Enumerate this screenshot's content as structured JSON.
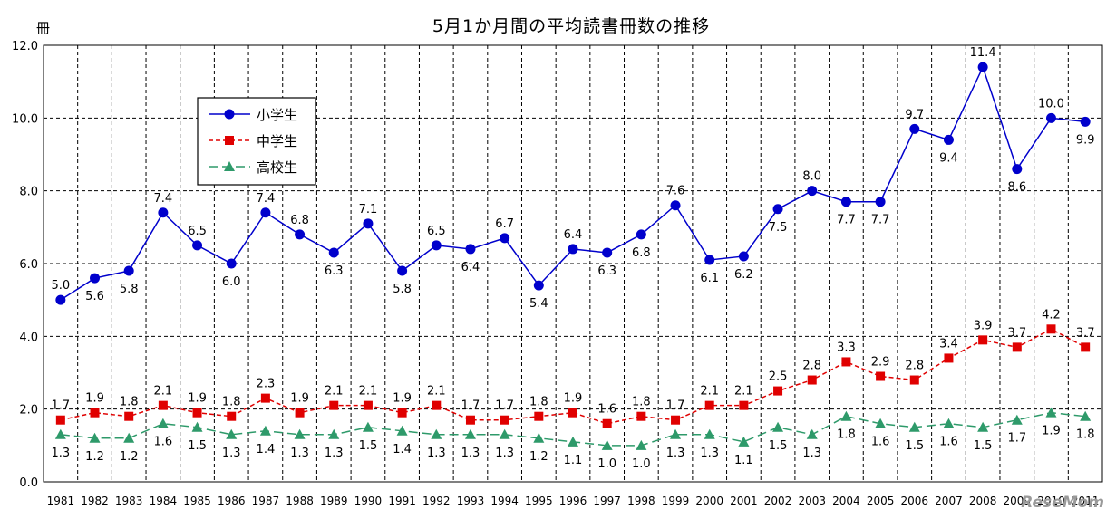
{
  "chart_data": {
    "type": "line",
    "title": "5月1か月間の平均読書冊数の推移",
    "ylabel": "冊",
    "xlabel": "",
    "ylim": [
      0,
      12
    ],
    "yticks": [
      "0.0",
      "2.0",
      "4.0",
      "6.0",
      "8.0",
      "10.0",
      "12.0"
    ],
    "grid": true,
    "legend": "top-left",
    "x": [
      1981,
      1982,
      1983,
      1984,
      1985,
      1986,
      1987,
      1988,
      1989,
      1990,
      1991,
      1992,
      1993,
      1994,
      1995,
      1996,
      1997,
      1998,
      1999,
      2000,
      2001,
      2002,
      2003,
      2004,
      2005,
      2006,
      2007,
      2008,
      2009,
      2010,
      2011
    ],
    "x_labels": [
      "1981",
      "1982",
      "1983",
      "1984",
      "1985",
      "1986",
      "1987",
      "1988",
      "1989",
      "1990",
      "1991",
      "1992",
      "1993",
      "1994",
      "1995",
      "1996",
      "1997",
      "1998",
      "1999",
      "2000",
      "2001",
      "2002",
      "2003",
      "2004",
      "2005",
      "2006",
      "2007",
      "2008",
      "2009",
      "2010",
      "2011"
    ],
    "series": [
      {
        "name": "小学生",
        "color": "#0000cc",
        "marker": "circle",
        "dash": "solid",
        "values": [
          5.0,
          5.6,
          5.8,
          7.4,
          6.5,
          6.0,
          7.4,
          6.8,
          6.3,
          7.1,
          5.8,
          6.5,
          6.4,
          6.7,
          5.4,
          6.4,
          6.3,
          6.8,
          7.6,
          6.1,
          6.2,
          7.5,
          8.0,
          7.7,
          7.7,
          9.7,
          9.4,
          11.4,
          8.6,
          10.0,
          9.9
        ],
        "labels": [
          "5.0",
          "5.6",
          "5.8",
          "7.4",
          "6.5",
          "6.0",
          "7.4",
          "6.8",
          "6.3",
          "7.1",
          "5.8",
          "6.5",
          "6.4",
          "6.7",
          "5.4",
          "6.4",
          "6.3",
          "6.8",
          "7.6",
          "6.1",
          "6.2",
          "7.5",
          "8.0",
          "7.7",
          "7.7",
          "9.7",
          "9.4",
          "11.4",
          "8.6",
          "10.0",
          "9.9"
        ]
      },
      {
        "name": "中学生",
        "color": "#e00000",
        "marker": "square",
        "dash": "short",
        "values": [
          1.7,
          1.9,
          1.8,
          2.1,
          1.9,
          1.8,
          2.3,
          1.9,
          2.1,
          2.1,
          1.9,
          2.1,
          1.7,
          1.7,
          1.8,
          1.9,
          1.6,
          1.8,
          1.7,
          2.1,
          2.1,
          2.5,
          2.8,
          3.3,
          2.9,
          2.8,
          3.4,
          3.9,
          3.7,
          4.2,
          3.7
        ],
        "labels": [
          "1.7",
          "1.9",
          "1.8",
          "2.1",
          "1.9",
          "1.8",
          "2.3",
          "1.9",
          "2.1",
          "2.1",
          "1.9",
          "2.1",
          "1.7",
          "1.7",
          "1.8",
          "1.9",
          "1.6",
          "1.8",
          "1.7",
          "2.1",
          "2.1",
          "2.5",
          "2.8",
          "3.3",
          "2.9",
          "2.8",
          "3.4",
          "3.9",
          "3.7",
          "4.2",
          "3.7"
        ]
      },
      {
        "name": "高校生",
        "color": "#2e9a6a",
        "marker": "triangle",
        "dash": "long",
        "values": [
          1.3,
          1.2,
          1.2,
          1.6,
          1.5,
          1.3,
          1.4,
          1.3,
          1.3,
          1.5,
          1.4,
          1.3,
          1.3,
          1.3,
          1.2,
          1.1,
          1.0,
          1.0,
          1.3,
          1.3,
          1.1,
          1.5,
          1.3,
          1.8,
          1.6,
          1.5,
          1.6,
          1.5,
          1.7,
          1.9,
          1.8
        ],
        "labels": [
          "1.3",
          "1.2",
          "1.2",
          "1.6",
          "1.5",
          "1.3",
          "1.4",
          "1.3",
          "1.3",
          "1.5",
          "1.4",
          "1.3",
          "1.3",
          "1.3",
          "1.2",
          "1.1",
          "1.0",
          "1.0",
          "1.3",
          "1.3",
          "1.1",
          "1.5",
          "1.3",
          "1.8",
          "1.6",
          "1.5",
          "1.6",
          "1.5",
          "1.7",
          "1.9",
          "1.8"
        ]
      }
    ]
  },
  "watermark": "ReseMom"
}
